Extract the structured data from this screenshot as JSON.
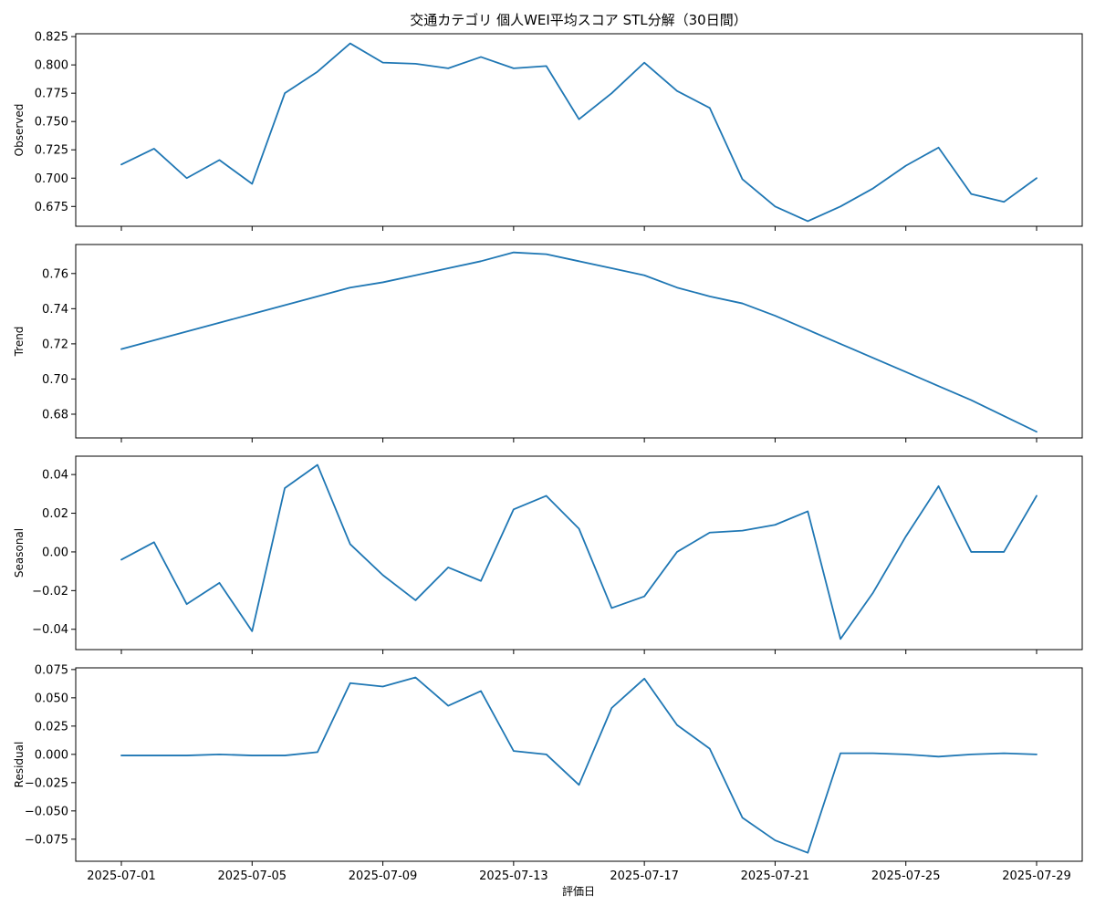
{
  "chart_data": {
    "type": "line",
    "title": "交通カテゴリ 個人WEI平均スコア STL分解（30日間）",
    "xlabel": "評価日",
    "x_tick_labels": [
      "2025-07-01",
      "2025-07-05",
      "2025-07-09",
      "2025-07-13",
      "2025-07-17",
      "2025-07-21",
      "2025-07-25",
      "2025-07-29"
    ],
    "x_tick_index": [
      0,
      4,
      8,
      12,
      16,
      20,
      24,
      28
    ],
    "dates": [
      "2025-07-01",
      "2025-07-02",
      "2025-07-03",
      "2025-07-04",
      "2025-07-05",
      "2025-07-06",
      "2025-07-07",
      "2025-07-08",
      "2025-07-09",
      "2025-07-10",
      "2025-07-11",
      "2025-07-12",
      "2025-07-13",
      "2025-07-14",
      "2025-07-15",
      "2025-07-16",
      "2025-07-17",
      "2025-07-18",
      "2025-07-19",
      "2025-07-20",
      "2025-07-21",
      "2025-07-22",
      "2025-07-23",
      "2025-07-24",
      "2025-07-25",
      "2025-07-26",
      "2025-07-27",
      "2025-07-28",
      "2025-07-29"
    ],
    "line_color": "#1f77b4",
    "panels": [
      {
        "name": "Observed",
        "ylabel": "Observed",
        "ylim": [
          0.6575,
          0.8275
        ],
        "ticks": [
          0.675,
          0.7,
          0.725,
          0.75,
          0.775,
          0.8,
          0.825
        ],
        "tick_labels": [
          "0.675",
          "0.700",
          "0.725",
          "0.750",
          "0.775",
          "0.800",
          "0.825"
        ],
        "values": [
          0.712,
          0.726,
          0.7,
          0.716,
          0.695,
          0.775,
          0.794,
          0.819,
          0.802,
          0.801,
          0.797,
          0.807,
          0.797,
          0.799,
          0.752,
          0.775,
          0.802,
          0.777,
          0.762,
          0.699,
          0.675,
          0.662,
          0.675,
          0.691,
          0.711,
          0.727,
          0.686,
          0.679,
          0.7
        ]
      },
      {
        "name": "Trend",
        "ylabel": "Trend",
        "ylim": [
          0.6665,
          0.7765
        ],
        "ticks": [
          0.68,
          0.7,
          0.72,
          0.74,
          0.76
        ],
        "tick_labels": [
          "0.68",
          "0.70",
          "0.72",
          "0.74",
          "0.76"
        ],
        "values": [
          0.717,
          0.722,
          0.727,
          0.732,
          0.737,
          0.742,
          0.747,
          0.752,
          0.755,
          0.759,
          0.763,
          0.767,
          0.772,
          0.771,
          0.767,
          0.763,
          0.759,
          0.752,
          0.747,
          0.743,
          0.736,
          0.728,
          0.72,
          0.712,
          0.704,
          0.696,
          0.688,
          0.679,
          0.67
        ]
      },
      {
        "name": "Seasonal",
        "ylabel": "Seasonal",
        "ylim": [
          -0.0505,
          0.0495
        ],
        "ticks": [
          -0.04,
          -0.02,
          0.0,
          0.02,
          0.04
        ],
        "tick_labels": [
          "−0.04",
          "−0.02",
          "0.00",
          "0.02",
          "0.04"
        ],
        "values": [
          -0.004,
          0.005,
          -0.027,
          -0.016,
          -0.041,
          0.033,
          0.045,
          0.004,
          -0.012,
          -0.025,
          -0.008,
          -0.015,
          0.022,
          0.029,
          0.012,
          -0.029,
          -0.023,
          0.0,
          0.01,
          0.011,
          0.014,
          0.021,
          -0.045,
          -0.021,
          0.008,
          0.034,
          0.0,
          0.0,
          0.029
        ]
      },
      {
        "name": "Residual",
        "ylabel": "Residual",
        "ylim": [
          -0.0945,
          0.0765
        ],
        "ticks": [
          -0.075,
          -0.05,
          -0.025,
          0.0,
          0.025,
          0.05,
          0.075
        ],
        "tick_labels": [
          "−0.075",
          "−0.050",
          "−0.025",
          "0.000",
          "0.025",
          "0.050",
          "0.075"
        ],
        "values": [
          -0.001,
          -0.001,
          -0.001,
          0.0,
          -0.001,
          -0.001,
          0.002,
          0.063,
          0.06,
          0.068,
          0.043,
          0.056,
          0.003,
          0.0,
          -0.027,
          0.041,
          0.067,
          0.026,
          0.005,
          -0.056,
          -0.076,
          -0.087,
          0.001,
          0.001,
          0.0,
          -0.002,
          0.0,
          0.001,
          0.0
        ]
      }
    ]
  }
}
